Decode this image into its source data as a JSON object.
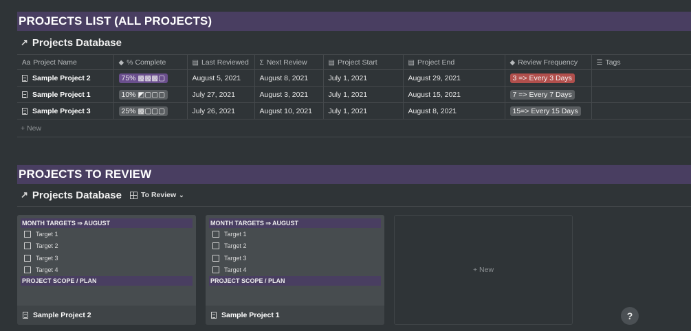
{
  "sections": {
    "list_banner": "PROJECTS LIST (ALL PROJECTS)",
    "review_banner": "PROJECTS TO REVIEW"
  },
  "list_db": {
    "arrow": "↗",
    "title": "Projects Database"
  },
  "review_db": {
    "arrow": "↗",
    "title": "Projects Database",
    "view_label": "To Review",
    "view_chevron": "⌄"
  },
  "table": {
    "headers": [
      {
        "icon": "Aa",
        "label": "Project Name"
      },
      {
        "icon": "◆",
        "label": "% Complete"
      },
      {
        "icon": "▤",
        "label": "Last Reviewed"
      },
      {
        "icon": "Σ",
        "label": "Next Review"
      },
      {
        "icon": "▤",
        "label": "Project Start"
      },
      {
        "icon": "▤",
        "label": "Project End"
      },
      {
        "icon": "◆",
        "label": "Review Frequency"
      },
      {
        "icon": "☰",
        "label": "Tags"
      }
    ],
    "rows": [
      {
        "name": "Sample Project 2",
        "complete": "75% ▩▩▩▢",
        "last_reviewed": "August 5, 2021",
        "next_review": "August 8, 2021",
        "start": "July 1, 2021",
        "end": "August 29, 2021",
        "frequency": "3 => Every 3 Days",
        "tags": ""
      },
      {
        "name": "Sample Project 1",
        "complete": "10% ◩▢▢▢",
        "last_reviewed": "July 27, 2021",
        "next_review": "August 3, 2021",
        "start": "July 1, 2021",
        "end": "August 15, 2021",
        "frequency": "7 => Every 7 Days",
        "tags": ""
      },
      {
        "name": "Sample Project 3",
        "complete": "25% ▩▢▢▢",
        "last_reviewed": "July 26, 2021",
        "next_review": "August 10, 2021",
        "start": "July 1, 2021",
        "end": "August 8, 2021",
        "frequency": "15=> Every 15 Days",
        "tags": ""
      }
    ],
    "new_label": "+ New"
  },
  "board": {
    "cards": [
      {
        "month_header": "MONTH TARGETS ⇒ AUGUST",
        "targets": [
          "Target 1",
          "Target 2",
          "Target 3",
          "Target 4"
        ],
        "scope_header": "PROJECT SCOPE / PLAN",
        "title": "Sample Project 2"
      },
      {
        "month_header": "MONTH TARGETS ⇒ AUGUST",
        "targets": [
          "Target 1",
          "Target 2",
          "Target 3",
          "Target 4"
        ],
        "scope_header": "PROJECT SCOPE / PLAN",
        "title": "Sample Project 1"
      }
    ],
    "new_label": "+ New"
  },
  "help": {
    "label": "?"
  },
  "colors": {
    "background": "#2f3437",
    "banner": "#493e61",
    "pill_purple": "#6a4f8d",
    "pill_gray": "#5a5e61",
    "pill_red": "#b14f4c"
  }
}
